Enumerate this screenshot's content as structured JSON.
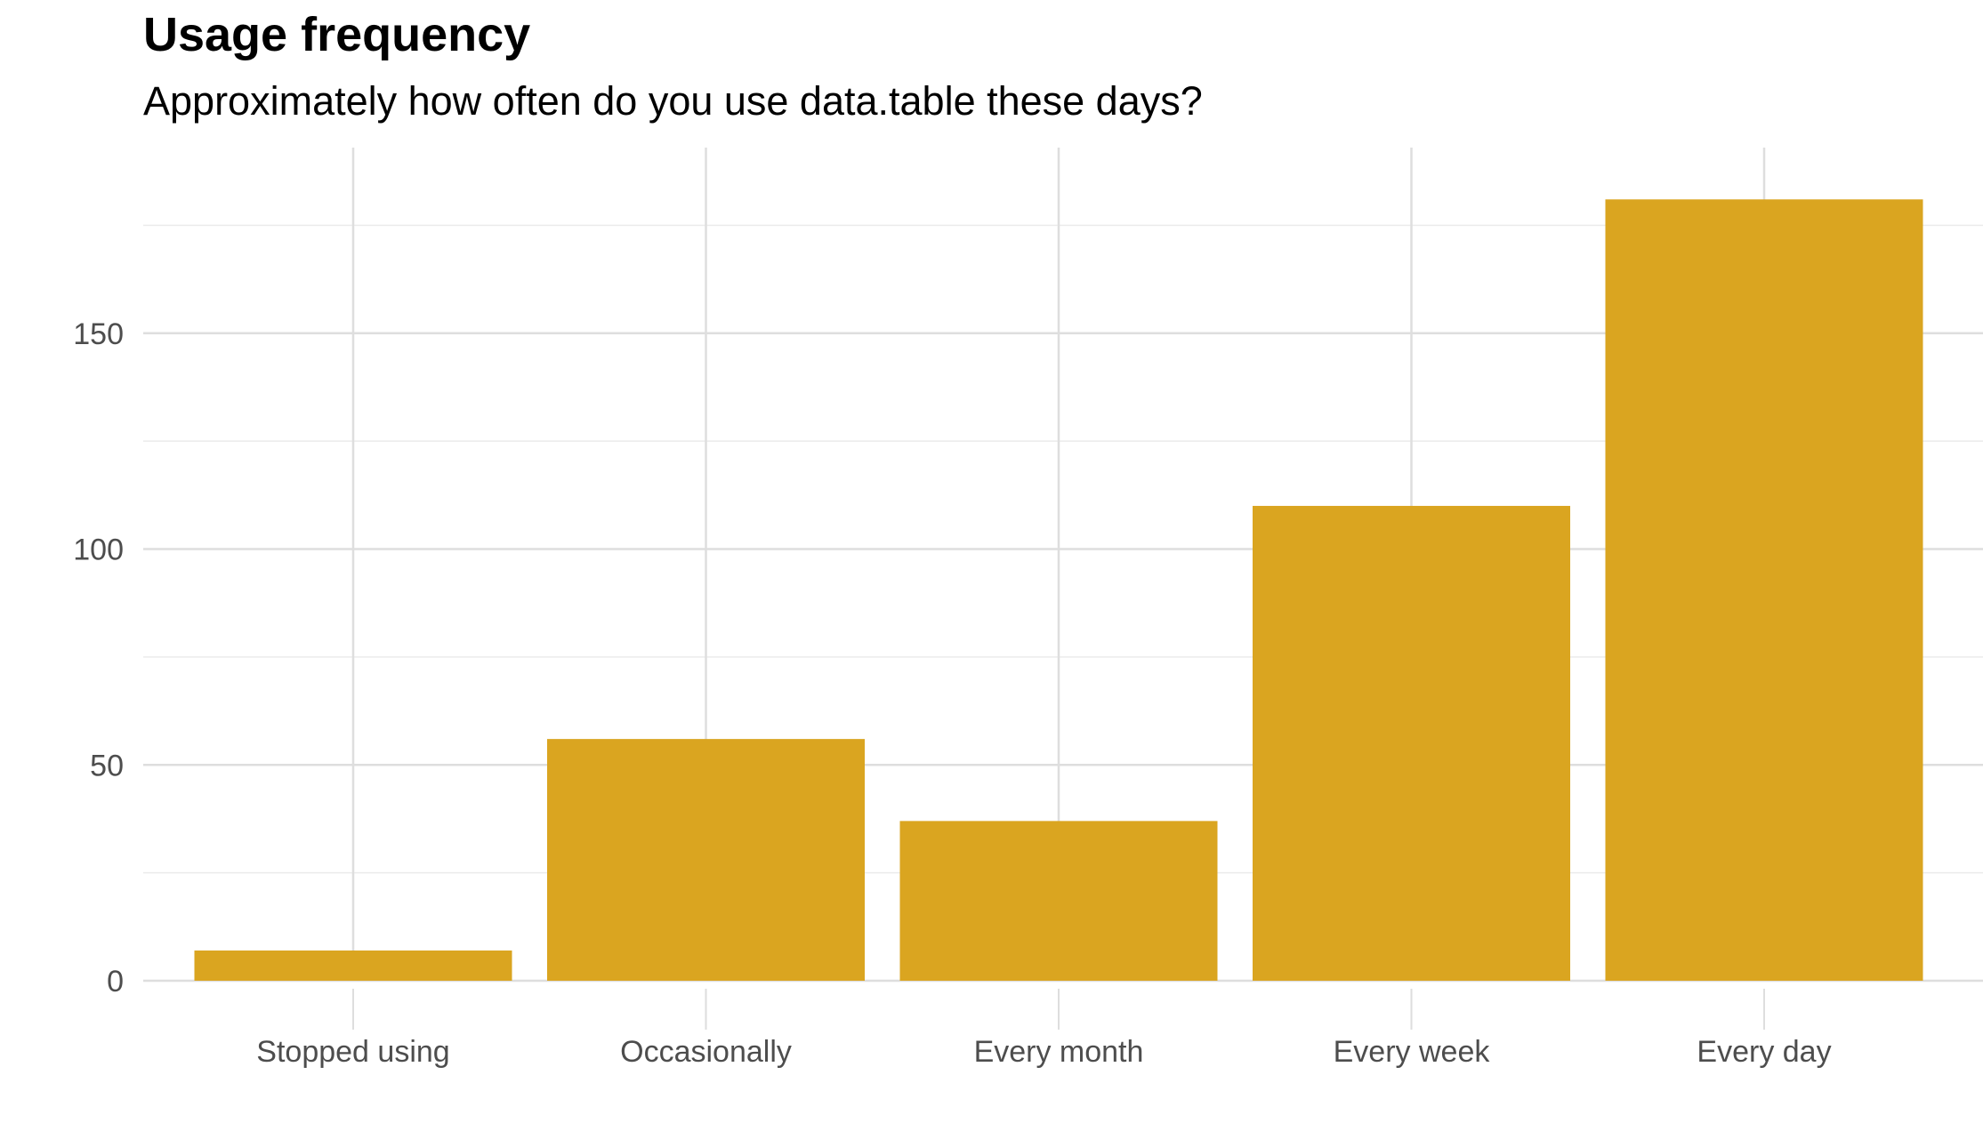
{
  "chart_data": {
    "type": "bar",
    "title": "Usage frequency",
    "subtitle": "Approximately how often do you use data.table these days?",
    "xlabel": "",
    "ylabel": "",
    "categories": [
      "Stopped using",
      "Occasionally",
      "Every month",
      "Every week",
      "Every day"
    ],
    "values": [
      7,
      56,
      37,
      110,
      181
    ],
    "ylim": [
      0,
      193
    ],
    "yticks": [
      0,
      50,
      100,
      150
    ],
    "yticks_minor": [
      25,
      75,
      125,
      175
    ],
    "grid": true,
    "legend": "none",
    "bar_color": "#DAA520"
  }
}
